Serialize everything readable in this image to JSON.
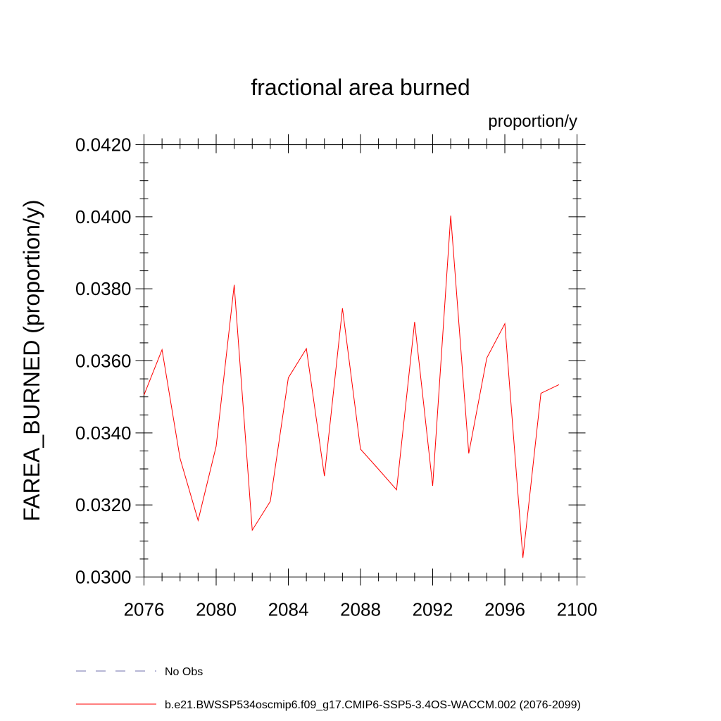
{
  "chart_data": {
    "type": "line",
    "title": "fractional area burned",
    "units_label": "proportion/y",
    "xlabel": "",
    "ylabel": "FAREA_BURNED  (proportion/y)",
    "xlim": [
      2076,
      2100
    ],
    "ylim": [
      0.03,
      0.042
    ],
    "x_ticks": [
      2076,
      2080,
      2084,
      2088,
      2092,
      2096,
      2100
    ],
    "x_tick_labels": [
      "2076",
      "2080",
      "2084",
      "2088",
      "2092",
      "2096",
      "2100"
    ],
    "y_ticks": [
      0.03,
      0.032,
      0.034,
      0.036,
      0.038,
      0.04,
      0.042
    ],
    "y_tick_labels": [
      "0.0300",
      "0.0320",
      "0.0340",
      "0.0360",
      "0.0380",
      "0.0400",
      "0.0420"
    ],
    "grid": false,
    "legend_position": "bottom-left",
    "series": [
      {
        "name": "b.e21.BWSSP534oscmip6.f09_g17.CMIP6-SSP5-3.4OS-WACCM.002 (2076-2099)",
        "color": "#ff0000",
        "style": "solid",
        "x": [
          2076,
          2077,
          2078,
          2079,
          2080,
          2081,
          2082,
          2083,
          2084,
          2085,
          2086,
          2087,
          2088,
          2089,
          2090,
          2091,
          2092,
          2093,
          2094,
          2095,
          2096,
          2097,
          2098,
          2099
        ],
        "values": [
          0.03505,
          0.03631,
          0.03329,
          0.03157,
          0.03363,
          0.03811,
          0.0313,
          0.0321,
          0.03553,
          0.03634,
          0.0328,
          0.03746,
          0.03355,
          0.03299,
          0.03242,
          0.03708,
          0.03253,
          0.04003,
          0.03343,
          0.03608,
          0.03703,
          0.03053,
          0.0351,
          0.03534
        ]
      }
    ],
    "legend": [
      {
        "label": "No Obs",
        "color": "#6f6fae",
        "style": "dashed"
      },
      {
        "label": "b.e21.BWSSP534oscmip6.f09_g17.CMIP6-SSP5-3.4OS-WACCM.002 (2076-2099)",
        "color": "#ff0000",
        "style": "solid"
      }
    ]
  }
}
